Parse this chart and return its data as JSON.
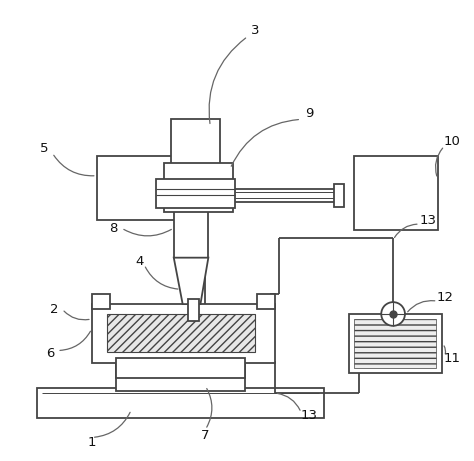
{
  "background_color": "#ffffff",
  "line_color": "#444444",
  "figsize": [
    4.74,
    4.61
  ],
  "dpi": 100
}
